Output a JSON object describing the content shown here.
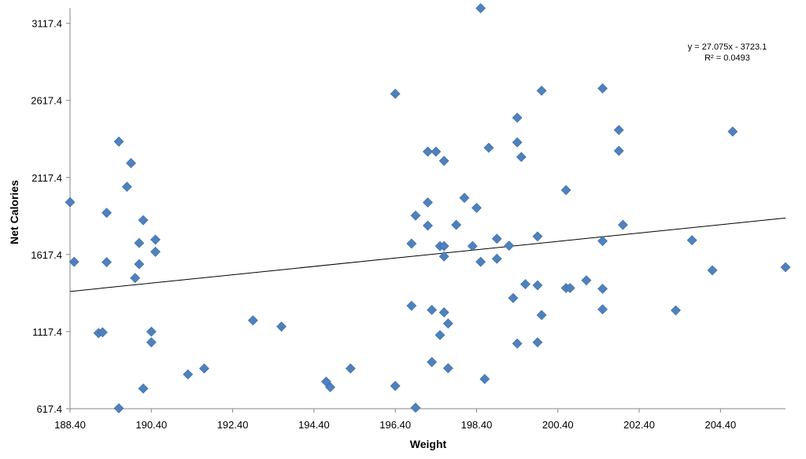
{
  "chart_data": {
    "type": "scatter",
    "title": "",
    "xlabel": "Weight",
    "ylabel": "Net Calories",
    "xlim": [
      188.4,
      206.0
    ],
    "ylim": [
      617.4,
      3217.4
    ],
    "x_ticks": [
      188.4,
      190.4,
      192.4,
      194.4,
      196.4,
      198.4,
      200.4,
      202.4,
      204.4
    ],
    "x_tick_labels": [
      "188.40",
      "190.40",
      "192.40",
      "194.40",
      "196.40",
      "198.40",
      "200.40",
      "202.40",
      "204.40"
    ],
    "y_ticks": [
      617.4,
      1117.4,
      1617.4,
      2117.4,
      2617.4,
      3117.4
    ],
    "y_tick_labels": [
      "617.4",
      "1117.4",
      "1617.4",
      "2117.4",
      "2617.4",
      "3117.4"
    ],
    "grid": false,
    "legend": "none",
    "marker_color": "#4f81bd",
    "trendline": {
      "type": "linear",
      "slope": 27.075,
      "intercept": -3723.1,
      "equation_label": "y = 27.075x - 3723.1",
      "r2_label": "R² = 0.0493"
    },
    "points": [
      [
        188.4,
        1957
      ],
      [
        188.5,
        1570
      ],
      [
        189.1,
        1108
      ],
      [
        189.2,
        1113
      ],
      [
        189.3,
        1888
      ],
      [
        189.3,
        1568
      ],
      [
        189.6,
        620
      ],
      [
        189.6,
        2350
      ],
      [
        189.8,
        2057
      ],
      [
        189.9,
        2210
      ],
      [
        190.0,
        1465
      ],
      [
        190.1,
        1555
      ],
      [
        190.1,
        1692
      ],
      [
        190.2,
        1840
      ],
      [
        190.2,
        748
      ],
      [
        190.4,
        1117
      ],
      [
        190.4,
        1048
      ],
      [
        190.5,
        1635
      ],
      [
        190.5,
        1714
      ],
      [
        191.3,
        840
      ],
      [
        191.7,
        878
      ],
      [
        192.9,
        1190
      ],
      [
        193.6,
        1150
      ],
      [
        194.7,
        793
      ],
      [
        194.8,
        757
      ],
      [
        195.3,
        878
      ],
      [
        196.4,
        2660
      ],
      [
        196.4,
        765
      ],
      [
        196.8,
        1285
      ],
      [
        196.8,
        1688
      ],
      [
        196.9,
        624
      ],
      [
        196.9,
        1870
      ],
      [
        197.2,
        2285
      ],
      [
        197.2,
        1955
      ],
      [
        197.2,
        1805
      ],
      [
        197.3,
        1258
      ],
      [
        197.3,
        920
      ],
      [
        197.4,
        2285
      ],
      [
        197.5,
        1095
      ],
      [
        197.5,
        1672
      ],
      [
        197.6,
        2225
      ],
      [
        197.6,
        1242
      ],
      [
        197.6,
        1672
      ],
      [
        197.6,
        1605
      ],
      [
        197.7,
        1170
      ],
      [
        197.7,
        880
      ],
      [
        197.9,
        1810
      ],
      [
        198.1,
        1985
      ],
      [
        198.3,
        1672
      ],
      [
        198.4,
        1920
      ],
      [
        198.5,
        3215
      ],
      [
        198.5,
        1570
      ],
      [
        198.6,
        810
      ],
      [
        198.7,
        2310
      ],
      [
        198.9,
        1590
      ],
      [
        198.9,
        1720
      ],
      [
        199.2,
        1675
      ],
      [
        199.3,
        1335
      ],
      [
        199.4,
        2505
      ],
      [
        199.4,
        2345
      ],
      [
        199.4,
        1040
      ],
      [
        199.5,
        2250
      ],
      [
        199.6,
        1425
      ],
      [
        199.9,
        1048
      ],
      [
        199.9,
        1735
      ],
      [
        199.9,
        1418
      ],
      [
        200.0,
        2680
      ],
      [
        200.0,
        1225
      ],
      [
        200.6,
        2035
      ],
      [
        200.6,
        1400
      ],
      [
        200.7,
        1400
      ],
      [
        201.1,
        1450
      ],
      [
        201.5,
        2695
      ],
      [
        201.5,
        1705
      ],
      [
        201.5,
        1395
      ],
      [
        201.5,
        1262
      ],
      [
        201.9,
        2425
      ],
      [
        201.9,
        2290
      ],
      [
        202.0,
        1810
      ],
      [
        203.3,
        1255
      ],
      [
        203.7,
        1710
      ],
      [
        204.2,
        1515
      ],
      [
        204.7,
        2415
      ],
      [
        206.0,
        1535
      ]
    ]
  }
}
